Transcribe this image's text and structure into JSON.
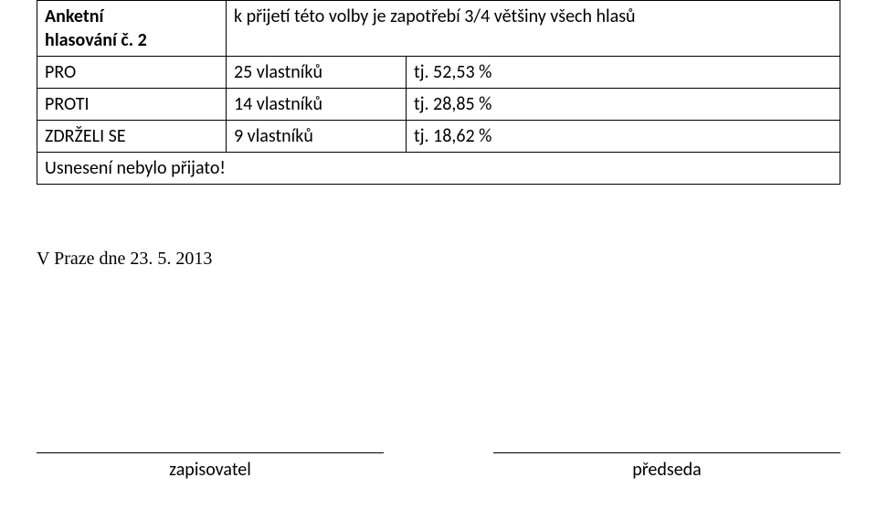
{
  "table": {
    "row1": {
      "left_line1": "Anketní",
      "left_line2": "hlasování č. 2",
      "right": "k přijetí této volby je zapotřebí 3/4 většiny všech hlasů"
    },
    "row2": {
      "label": "PRO",
      "count": " 25 vlastníků",
      "pct": "tj. 52,53 %"
    },
    "row3": {
      "label": "PROTI",
      "count": "14 vlastníků",
      "pct": "tj. 28,85 %"
    },
    "row4": {
      "label": "ZDRŽELI SE",
      "count": "9 vlastníků",
      "pct": "tj. 18,62 %"
    },
    "row5": {
      "text": "Usnesení nebylo přijato!"
    }
  },
  "date": "V Praze dne 23. 5. 2013",
  "signatures": {
    "left": "zapisovatel",
    "right": "předseda"
  },
  "style": {
    "font_family": "Calibri, Arial, sans-serif",
    "font_size_pt": 15,
    "date_font_family": "Times New Roman, serif",
    "border_color": "#000000",
    "background_color": "#ffffff",
    "text_color": "#000000"
  }
}
